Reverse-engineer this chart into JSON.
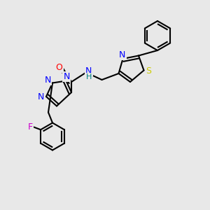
{
  "background_color": "#e8e8e8",
  "atoms": {
    "colors": {
      "C": "#000000",
      "N": "#0000ff",
      "O": "#ff0000",
      "S": "#cccc00",
      "F": "#cc00cc",
      "H": "#008080"
    }
  },
  "bond_color": "#000000",
  "bond_width": 1.5,
  "font_size": 9
}
